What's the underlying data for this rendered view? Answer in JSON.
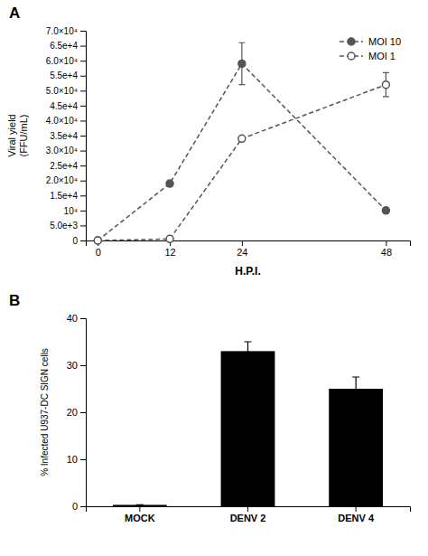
{
  "chart_data": [
    {
      "type": "line",
      "title": "A",
      "x": [
        0,
        12,
        24,
        48
      ],
      "xlabel": "H.P.I.",
      "ylabel": "Viral yield\n(FFU/mL)",
      "xlim": [
        -2,
        52
      ],
      "xticks": [
        0,
        12,
        24,
        48
      ],
      "ylim": [
        0,
        70000
      ],
      "yticks": [
        0,
        {
          "value": 5000,
          "label": "5.0e+3"
        },
        {
          "value": 10000,
          "label": "10⁴"
        },
        {
          "value": 15000,
          "label": "1.5e+4"
        },
        {
          "value": 20000,
          "label": "2.0×10⁴"
        },
        {
          "value": 25000,
          "label": "2.5e+4"
        },
        {
          "value": 30000,
          "label": "3.0×10⁴"
        },
        {
          "value": 35000,
          "label": "3.5e+4"
        },
        {
          "value": 40000,
          "label": "4.0×10⁴"
        },
        {
          "value": 45000,
          "label": "4.5e+4"
        },
        {
          "value": 50000,
          "label": "5.0×10⁴"
        },
        {
          "value": 55000,
          "label": "5.5e+4"
        },
        {
          "value": 60000,
          "label": "6.0×10⁴"
        },
        {
          "value": 65000,
          "label": "6.5e+4"
        },
        {
          "value": 70000,
          "label": "7.0×10⁴"
        }
      ],
      "legend": "upper right",
      "series": [
        {
          "name": "MOI 10",
          "color": "#555555",
          "marker": "circle",
          "line_style": "dashed",
          "values": [
            0,
            19000,
            59000,
            10000
          ],
          "errors": [
            0,
            0,
            7000,
            0
          ]
        },
        {
          "name": "MOI 1",
          "color": "#555555",
          "marker": "circle-open",
          "line_style": "dashed",
          "values": [
            0,
            500,
            34000,
            52000
          ],
          "errors": [
            0,
            0,
            0,
            4000
          ]
        }
      ]
    },
    {
      "type": "bar",
      "title": "B",
      "categories": [
        "MOCK",
        "DENV 2",
        "DENV 4"
      ],
      "values": [
        0.3,
        33.0,
        25.0
      ],
      "errors": [
        0,
        2.0,
        2.5
      ],
      "ylabel": "% Infected U937-DC SIGN cells",
      "ylim": [
        0,
        40
      ],
      "yticks": [
        0,
        10,
        20,
        30,
        40
      ],
      "color": "#000000"
    }
  ]
}
